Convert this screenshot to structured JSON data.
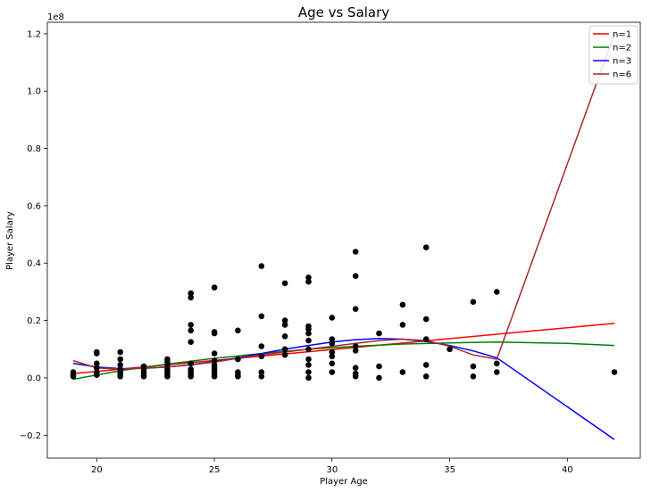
{
  "chart_data": {
    "type": "scatter",
    "title": "Age vs Salary",
    "xlabel": "Player Age",
    "ylabel": "Player Salary",
    "offset_text": "1e8",
    "xlim": [
      17.9,
      43.1
    ],
    "ylim": [
      -0.28,
      1.24
    ],
    "xticks": [
      20,
      25,
      30,
      35,
      40
    ],
    "yticks": [
      -0.2,
      0.0,
      0.2,
      0.4,
      0.6,
      0.8,
      1.0,
      1.2
    ],
    "ytick_labels": [
      "−0.2",
      "0.0",
      "0.2",
      "0.4",
      "0.6",
      "0.8",
      "1.0",
      "1.2"
    ],
    "legend_position": "top-right",
    "marker_color": "#000000",
    "points": [
      [
        19,
        0.02
      ],
      [
        19,
        0.01
      ],
      [
        19,
        0.005
      ],
      [
        20,
        0.09
      ],
      [
        20,
        0.085
      ],
      [
        20,
        0.05
      ],
      [
        20,
        0.035
      ],
      [
        20,
        0.02
      ],
      [
        20,
        0.01
      ],
      [
        21,
        0.09
      ],
      [
        21,
        0.065
      ],
      [
        21,
        0.045
      ],
      [
        21,
        0.03
      ],
      [
        21,
        0.02
      ],
      [
        21,
        0.01
      ],
      [
        21,
        0.005
      ],
      [
        22,
        0.04
      ],
      [
        22,
        0.03
      ],
      [
        22,
        0.02
      ],
      [
        22,
        0.01
      ],
      [
        22,
        0.005
      ],
      [
        23,
        0.065
      ],
      [
        23,
        0.055
      ],
      [
        23,
        0.045
      ],
      [
        23,
        0.03
      ],
      [
        23,
        0.02
      ],
      [
        23,
        0.01
      ],
      [
        23,
        0.005
      ],
      [
        24,
        0.295
      ],
      [
        24,
        0.28
      ],
      [
        24,
        0.185
      ],
      [
        24,
        0.165
      ],
      [
        24,
        0.125
      ],
      [
        24,
        0.05
      ],
      [
        24,
        0.03
      ],
      [
        24,
        0.02
      ],
      [
        24,
        0.01
      ],
      [
        24,
        0.005
      ],
      [
        25,
        0.315
      ],
      [
        25,
        0.16
      ],
      [
        25,
        0.155
      ],
      [
        25,
        0.085
      ],
      [
        25,
        0.06
      ],
      [
        25,
        0.045
      ],
      [
        25,
        0.035
      ],
      [
        25,
        0.025
      ],
      [
        25,
        0.015
      ],
      [
        25,
        0.005
      ],
      [
        26,
        0.165
      ],
      [
        26,
        0.065
      ],
      [
        26,
        0.02
      ],
      [
        26,
        0.01
      ],
      [
        26,
        0.005
      ],
      [
        27,
        0.39
      ],
      [
        27,
        0.215
      ],
      [
        27,
        0.11
      ],
      [
        27,
        0.075
      ],
      [
        27,
        0.02
      ],
      [
        27,
        0.005
      ],
      [
        28,
        0.33
      ],
      [
        28,
        0.2
      ],
      [
        28,
        0.185
      ],
      [
        28,
        0.145
      ],
      [
        28,
        0.1
      ],
      [
        28,
        0.08
      ],
      [
        29,
        0.35
      ],
      [
        29,
        0.335
      ],
      [
        29,
        0.18
      ],
      [
        29,
        0.17
      ],
      [
        29,
        0.155
      ],
      [
        29,
        0.13
      ],
      [
        29,
        0.1
      ],
      [
        29,
        0.065
      ],
      [
        29,
        0.045
      ],
      [
        29,
        0.02
      ],
      [
        29,
        0.0
      ],
      [
        30,
        0.21
      ],
      [
        30,
        0.135
      ],
      [
        30,
        0.12
      ],
      [
        30,
        0.09
      ],
      [
        30,
        0.075
      ],
      [
        30,
        0.05
      ],
      [
        30,
        0.02
      ],
      [
        31,
        0.44
      ],
      [
        31,
        0.355
      ],
      [
        31,
        0.24
      ],
      [
        31,
        0.11
      ],
      [
        31,
        0.095
      ],
      [
        31,
        0.035
      ],
      [
        31,
        0.015
      ],
      [
        31,
        0.005
      ],
      [
        32,
        0.155
      ],
      [
        32,
        0.04
      ],
      [
        32,
        0.0
      ],
      [
        33,
        0.255
      ],
      [
        33,
        0.185
      ],
      [
        33,
        0.02
      ],
      [
        34,
        0.455
      ],
      [
        34,
        0.205
      ],
      [
        34,
        0.135
      ],
      [
        34,
        0.045
      ],
      [
        34,
        0.005
      ],
      [
        35,
        0.1
      ],
      [
        36,
        0.265
      ],
      [
        36,
        0.04
      ],
      [
        36,
        0.005
      ],
      [
        37,
        0.3
      ],
      [
        37,
        0.05
      ],
      [
        37,
        0.02
      ],
      [
        42,
        0.02
      ]
    ],
    "series": [
      {
        "name": "n=1",
        "color": "#ff0000",
        "x": [
          19,
          42
        ],
        "y": [
          0.015,
          0.19
        ]
      },
      {
        "name": "n=2",
        "color": "#008000",
        "x": [
          19,
          21,
          23,
          25,
          27,
          29,
          31,
          33,
          35,
          37,
          40,
          42
        ],
        "y": [
          -0.005,
          0.025,
          0.048,
          0.068,
          0.085,
          0.1,
          0.11,
          0.118,
          0.122,
          0.125,
          0.12,
          0.113
        ]
      },
      {
        "name": "n=3",
        "color": "#0000ff",
        "x": [
          19,
          20,
          21,
          22,
          23,
          24,
          25,
          26,
          27,
          28,
          29,
          30,
          31,
          32,
          33,
          34,
          35,
          36,
          37,
          42
        ],
        "y": [
          0.05,
          0.038,
          0.032,
          0.033,
          0.038,
          0.046,
          0.057,
          0.07,
          0.085,
          0.1,
          0.113,
          0.125,
          0.133,
          0.137,
          0.135,
          0.127,
          0.113,
          0.094,
          0.07,
          -0.215
        ]
      },
      {
        "name": "n=6",
        "color": "#a52a2a",
        "x": [
          19,
          20,
          21,
          22,
          23,
          24,
          25,
          26,
          27,
          28,
          29,
          30,
          31,
          32,
          33,
          34,
          35,
          36,
          37,
          42
        ],
        "y": [
          0.06,
          0.035,
          0.03,
          0.034,
          0.038,
          0.045,
          0.055,
          0.068,
          0.08,
          0.09,
          0.1,
          0.11,
          0.12,
          0.13,
          0.135,
          0.13,
          0.11,
          0.08,
          0.065,
          1.2
        ]
      }
    ]
  }
}
